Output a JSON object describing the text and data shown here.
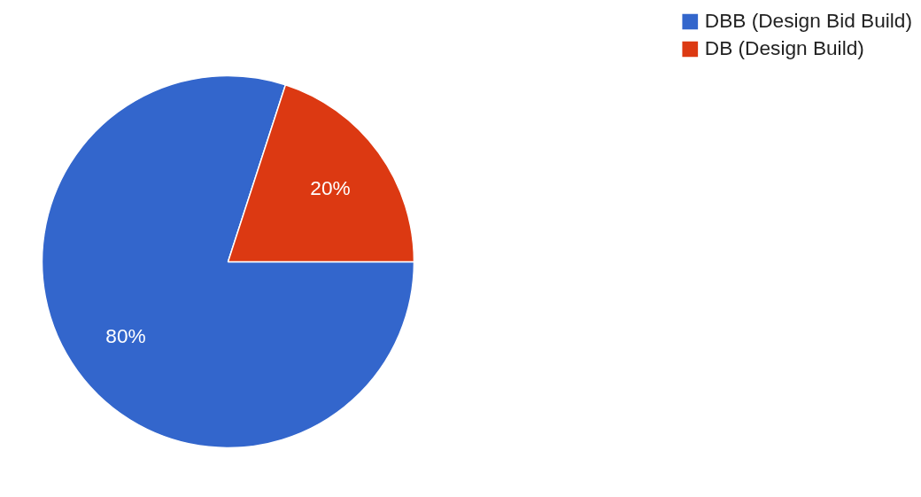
{
  "chart_data": {
    "type": "pie",
    "categories": [
      "DBB (Design Bid Build)",
      "DB (Design Build)"
    ],
    "values": [
      80,
      20
    ],
    "colors": [
      "#3366cc",
      "#dc3912"
    ],
    "value_labels": [
      "80%",
      "20%"
    ],
    "legend": "top right"
  }
}
